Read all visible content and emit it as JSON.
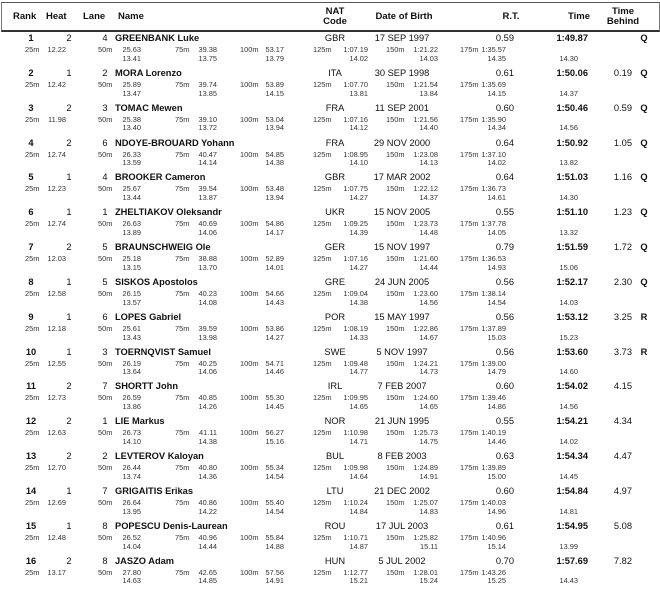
{
  "header": {
    "rank": "Rank",
    "heat": "Heat",
    "lane": "Lane",
    "name": "Name",
    "nat_line1": "NAT",
    "nat_line2": "Code",
    "dob": "Date of Birth",
    "rt": "R.T.",
    "time": "Time",
    "behind_line1": "Time",
    "behind_line2": "Behind"
  },
  "split_labels": [
    "25m",
    "50m",
    "75m",
    "100m",
    "125m",
    "150m",
    "175m"
  ],
  "results": [
    {
      "rank": "1",
      "heat": "2",
      "lane": "4",
      "name": "GREENBANK Luke",
      "nat": "GBR",
      "dob": "17 SEP 1997",
      "rt": "0.59",
      "time": "1:49.87",
      "behind": "",
      "qual": "Q",
      "splits": [
        "12.22",
        "25.63",
        "39.38",
        "53.17",
        "1:07.19",
        "1:21.22",
        "1:35.57"
      ],
      "diffs": [
        "13.41",
        "13.75",
        "13.79",
        "14.02",
        "14.03",
        "14.35",
        "14.30"
      ]
    },
    {
      "rank": "2",
      "heat": "1",
      "lane": "2",
      "name": "MORA Lorenzo",
      "nat": "ITA",
      "dob": "30 SEP 1998",
      "rt": "0.61",
      "time": "1:50.06",
      "behind": "0.19",
      "qual": "Q",
      "splits": [
        "12.42",
        "25.89",
        "39.74",
        "53.89",
        "1:07.70",
        "1:21.54",
        "1:35.69"
      ],
      "diffs": [
        "13.47",
        "13.85",
        "14.15",
        "13.81",
        "13.84",
        "14.15",
        "14.37"
      ]
    },
    {
      "rank": "3",
      "heat": "2",
      "lane": "3",
      "name": "TOMAC Mewen",
      "nat": "FRA",
      "dob": "11 SEP 2001",
      "rt": "0.60",
      "time": "1:50.46",
      "behind": "0.59",
      "qual": "Q",
      "splits": [
        "11.98",
        "25.38",
        "39.10",
        "53.04",
        "1:07.16",
        "1:21.56",
        "1:35.90"
      ],
      "diffs": [
        "13.40",
        "13.72",
        "13.94",
        "14.12",
        "14.40",
        "14.34",
        "14.56"
      ]
    },
    {
      "rank": "4",
      "heat": "2",
      "lane": "6",
      "name": "NDOYE-BROUARD Yohann",
      "nat": "FRA",
      "dob": "29 NOV 2000",
      "rt": "0.64",
      "time": "1:50.92",
      "behind": "1.05",
      "qual": "Q",
      "splits": [
        "12.74",
        "26.33",
        "40.47",
        "54.85",
        "1:08.95",
        "1:23.08",
        "1:37.10"
      ],
      "diffs": [
        "13.59",
        "14.14",
        "14.38",
        "14.10",
        "14.13",
        "14.02",
        "13.82"
      ]
    },
    {
      "rank": "5",
      "heat": "1",
      "lane": "4",
      "name": "BROOKER Cameron",
      "nat": "GBR",
      "dob": "17 MAR 2002",
      "rt": "0.64",
      "time": "1:51.03",
      "behind": "1.16",
      "qual": "Q",
      "splits": [
        "12.23",
        "25.67",
        "39.54",
        "53.48",
        "1:07.75",
        "1:22.12",
        "1:36.73"
      ],
      "diffs": [
        "13.44",
        "13.87",
        "13.94",
        "14.27",
        "14.37",
        "14.61",
        "14.30"
      ]
    },
    {
      "rank": "6",
      "heat": "1",
      "lane": "1",
      "name": "ZHELTIAKOV Oleksandr",
      "nat": "UKR",
      "dob": "15 NOV 2005",
      "rt": "0.55",
      "time": "1:51.10",
      "behind": "1.23",
      "qual": "Q",
      "splits": [
        "12.74",
        "26.63",
        "40.69",
        "54.86",
        "1:09.25",
        "1:23.73",
        "1:37.78"
      ],
      "diffs": [
        "13.89",
        "14.06",
        "14.17",
        "14.39",
        "14.48",
        "14.05",
        "13.32"
      ]
    },
    {
      "rank": "7",
      "heat": "2",
      "lane": "5",
      "name": "BRAUNSCHWEIG Ole",
      "nat": "GER",
      "dob": "15 NOV 1997",
      "rt": "0.79",
      "time": "1:51.59",
      "behind": "1.72",
      "qual": "Q",
      "splits": [
        "12.03",
        "25.18",
        "38.88",
        "52.89",
        "1:07.16",
        "1:21.60",
        "1:36.53"
      ],
      "diffs": [
        "13.15",
        "13.70",
        "14.01",
        "14.27",
        "14.44",
        "14.93",
        "15.06"
      ]
    },
    {
      "rank": "8",
      "heat": "1",
      "lane": "5",
      "name": "SISKOS Apostolos",
      "nat": "GRE",
      "dob": "24 JUN 2005",
      "rt": "0.56",
      "time": "1:52.17",
      "behind": "2.30",
      "qual": "Q",
      "splits": [
        "12.58",
        "26.15",
        "40.23",
        "54.66",
        "1:09.04",
        "1:23.60",
        "1:38.14"
      ],
      "diffs": [
        "13.57",
        "14.08",
        "14.43",
        "14.38",
        "14.56",
        "14.54",
        "14.03"
      ]
    },
    {
      "rank": "9",
      "heat": "1",
      "lane": "6",
      "name": "LOPES Gabriel",
      "nat": "POR",
      "dob": "15 MAY 1997",
      "rt": "0.56",
      "time": "1:53.12",
      "behind": "3.25",
      "qual": "R",
      "splits": [
        "12.18",
        "25.61",
        "39.59",
        "53.86",
        "1:08.19",
        "1:22.86",
        "1:37.89"
      ],
      "diffs": [
        "13.43",
        "13.98",
        "14.27",
        "14.33",
        "14.67",
        "15.03",
        "15.23"
      ]
    },
    {
      "rank": "10",
      "heat": "1",
      "lane": "3",
      "name": "TOERNQVIST Samuel",
      "nat": "SWE",
      "dob": "5 NOV 1997",
      "rt": "0.56",
      "time": "1:53.60",
      "behind": "3.73",
      "qual": "R",
      "splits": [
        "12.55",
        "26.19",
        "40.25",
        "54.71",
        "1:09.48",
        "1:24.21",
        "1:39.00"
      ],
      "diffs": [
        "13.64",
        "14.06",
        "14.46",
        "14.77",
        "14.73",
        "14.79",
        "14.60"
      ]
    },
    {
      "rank": "11",
      "heat": "2",
      "lane": "7",
      "name": "SHORTT John",
      "nat": "IRL",
      "dob": "7 FEB 2007",
      "rt": "0.60",
      "time": "1:54.02",
      "behind": "4.15",
      "qual": "",
      "splits": [
        "12.73",
        "26.59",
        "40.85",
        "55.30",
        "1:09.95",
        "1:24.60",
        "1:39.46"
      ],
      "diffs": [
        "13.86",
        "14.26",
        "14.45",
        "14.65",
        "14.65",
        "14.86",
        "14.56"
      ]
    },
    {
      "rank": "12",
      "heat": "2",
      "lane": "1",
      "name": "LIE Markus",
      "nat": "NOR",
      "dob": "21 JUN 1995",
      "rt": "0.55",
      "time": "1:54.21",
      "behind": "4.34",
      "qual": "",
      "splits": [
        "12.63",
        "26.73",
        "41.11",
        "56.27",
        "1:10.98",
        "1:25.73",
        "1:40.19"
      ],
      "diffs": [
        "14.10",
        "14.38",
        "15.16",
        "14.71",
        "14.75",
        "14.46",
        "14.02"
      ]
    },
    {
      "rank": "13",
      "heat": "2",
      "lane": "2",
      "name": "LEVTEROV Kaloyan",
      "nat": "BUL",
      "dob": "8 FEB 2003",
      "rt": "0.63",
      "time": "1:54.34",
      "behind": "4.47",
      "qual": "",
      "splits": [
        "12.70",
        "26.44",
        "40.80",
        "55.34",
        "1:09.98",
        "1:24.89",
        "1:39.89"
      ],
      "diffs": [
        "13.74",
        "14.36",
        "14.54",
        "14.64",
        "14.91",
        "15.00",
        "14.45"
      ]
    },
    {
      "rank": "14",
      "heat": "1",
      "lane": "7",
      "name": "GRIGAITIS Erikas",
      "nat": "LTU",
      "dob": "21 DEC 2002",
      "rt": "0.60",
      "time": "1:54.84",
      "behind": "4.97",
      "qual": "",
      "splits": [
        "12.69",
        "26.64",
        "40.86",
        "55.40",
        "1:10.24",
        "1:25.07",
        "1:40.03"
      ],
      "diffs": [
        "13.95",
        "14.22",
        "14.54",
        "14.84",
        "14.83",
        "14.96",
        "14.81"
      ]
    },
    {
      "rank": "15",
      "heat": "1",
      "lane": "8",
      "name": "POPESCU Denis-Laurean",
      "nat": "ROU",
      "dob": "17 JUL 2003",
      "rt": "0.61",
      "time": "1:54.95",
      "behind": "5.08",
      "qual": "",
      "splits": [
        "12.48",
        "26.52",
        "40.96",
        "55.84",
        "1:10.71",
        "1:25.82",
        "1:40.96"
      ],
      "diffs": [
        "14.04",
        "14.44",
        "14.88",
        "14.87",
        "15.11",
        "15.14",
        "13.99"
      ]
    },
    {
      "rank": "16",
      "heat": "2",
      "lane": "8",
      "name": "JASZO Adam",
      "nat": "HUN",
      "dob": "5 JUL 2002",
      "rt": "0.70",
      "time": "1:57.69",
      "behind": "7.82",
      "qual": "",
      "splits": [
        "13.17",
        "27.80",
        "42.65",
        "57.56",
        "1:12.77",
        "1:28.01",
        "1:43.26"
      ],
      "diffs": [
        "14.63",
        "14.85",
        "14.91",
        "15.21",
        "15.24",
        "15.25",
        "14.43"
      ]
    }
  ]
}
